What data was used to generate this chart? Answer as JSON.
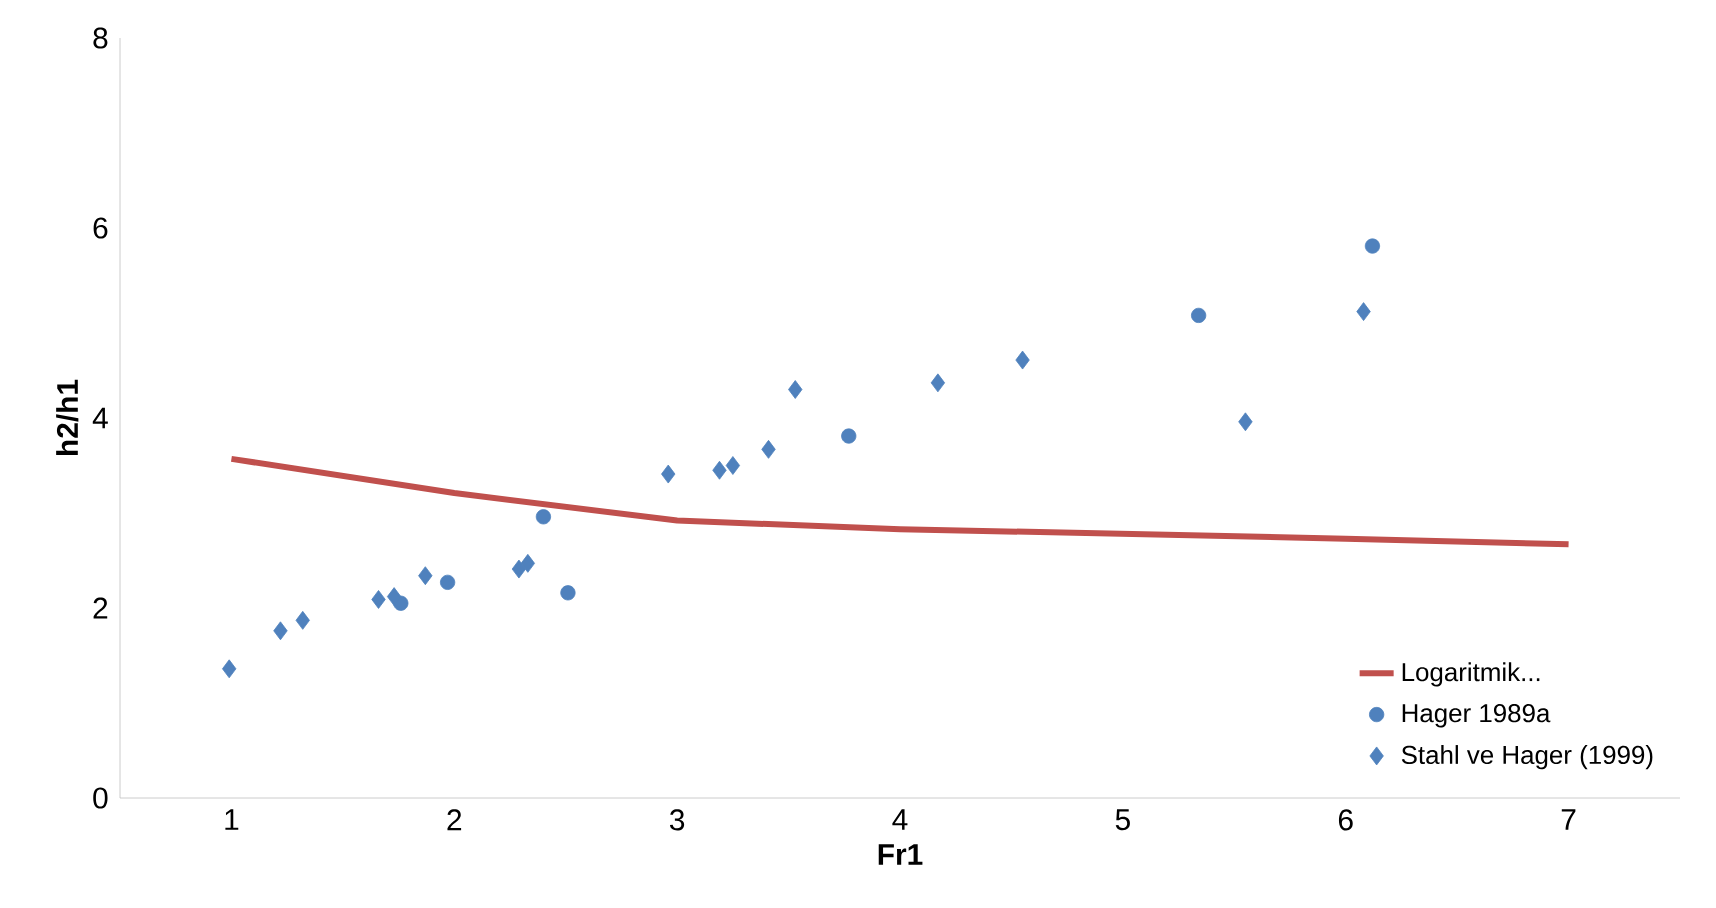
{
  "chart_data": {
    "type": "scatter",
    "xlabel": "Fr1",
    "ylabel": "h2/h1",
    "xlim": [
      0.5,
      7.5
    ],
    "xticks": [
      1,
      2,
      3,
      4,
      5,
      6,
      7
    ],
    "ylim": [
      0,
      8
    ],
    "yticks": [
      0,
      2,
      4,
      6,
      8
    ],
    "grid": false,
    "legend": "bottom right",
    "series": [
      {
        "name": "Logaritmik...",
        "type": "line",
        "color": "#c0504d",
        "marker": "none",
        "line_style": "solid",
        "x": [
          1,
          2,
          3,
          4,
          5,
          6,
          7
        ],
        "values": [
          3.57,
          3.21,
          2.92,
          2.83,
          2.78,
          2.73,
          2.67
        ]
      },
      {
        "name": "Hager 1989a",
        "color": "#4f81bd",
        "marker": "circle",
        "x": [
          2.4,
          1.97,
          1.76,
          2.51,
          3.77,
          5.34,
          6.12
        ],
        "values": [
          2.96,
          2.27,
          2.05,
          2.16,
          3.81,
          5.08,
          5.81
        ]
      },
      {
        "name": "Stahl ve Hager (1999)",
        "color": "#4f81bd",
        "marker": "diamond",
        "x": [
          0.99,
          1.22,
          1.32,
          1.66,
          1.73,
          1.87,
          2.33,
          2.29,
          2.96,
          3.19,
          3.25,
          3.41,
          3.53,
          4.17,
          4.55,
          5.55,
          6.08
        ],
        "values": [
          1.36,
          1.76,
          1.87,
          2.09,
          2.12,
          2.34,
          2.47,
          2.41,
          3.41,
          3.45,
          3.5,
          3.67,
          4.3,
          4.37,
          4.61,
          3.96,
          5.12
        ]
      }
    ]
  }
}
